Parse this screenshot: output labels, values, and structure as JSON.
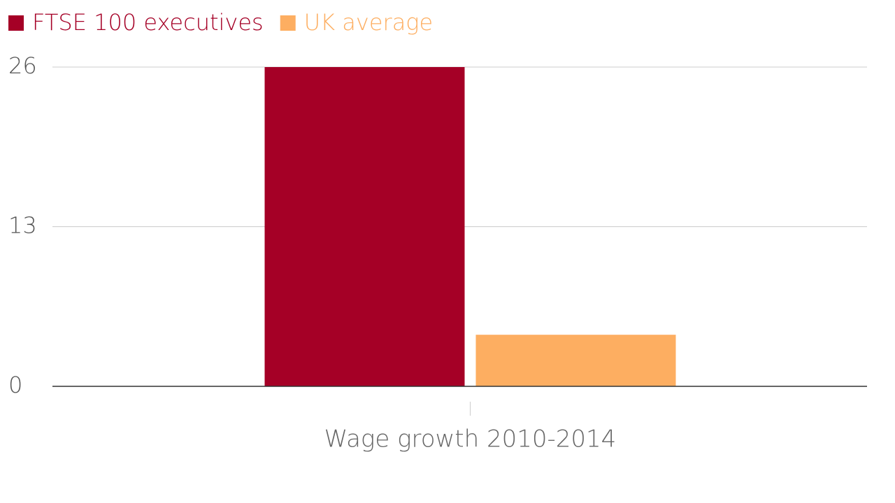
{
  "chart_data": {
    "type": "bar",
    "categories": [
      "Wage growth 2010-2014"
    ],
    "series": [
      {
        "name": "FTSE 100 executives",
        "color": "#a50026",
        "values": [
          26
        ]
      },
      {
        "name": "UK average",
        "color": "#fdae61",
        "values": [
          4.2
        ]
      }
    ],
    "ylim": [
      0,
      26
    ],
    "yticks": [
      0,
      13,
      26
    ],
    "grid": true
  }
}
